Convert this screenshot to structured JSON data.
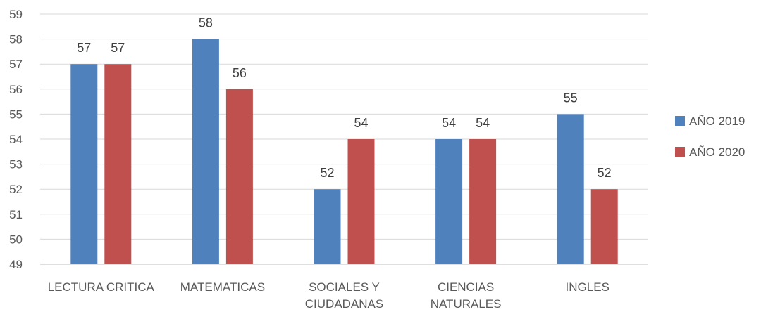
{
  "chart_data": {
    "type": "bar",
    "categories": [
      [
        "LECTURA CRITICA"
      ],
      [
        "MATEMATICAS"
      ],
      [
        "SOCIALES Y",
        "CIUDADANAS"
      ],
      [
        "CIENCIAS",
        "NATURALES"
      ],
      [
        "INGLES"
      ]
    ],
    "series": [
      {
        "name": "AÑO 2019",
        "color": "#4F81BD",
        "values": [
          57,
          58,
          52,
          54,
          55
        ]
      },
      {
        "name": "AÑO 2020",
        "color": "#C0504D",
        "values": [
          57,
          56,
          54,
          54,
          52
        ]
      }
    ],
    "ylim": [
      49,
      59
    ],
    "yticks": [
      49,
      50,
      51,
      52,
      53,
      54,
      55,
      56,
      57,
      58,
      59
    ],
    "grid": true,
    "legend": "right",
    "data_labels": true
  }
}
